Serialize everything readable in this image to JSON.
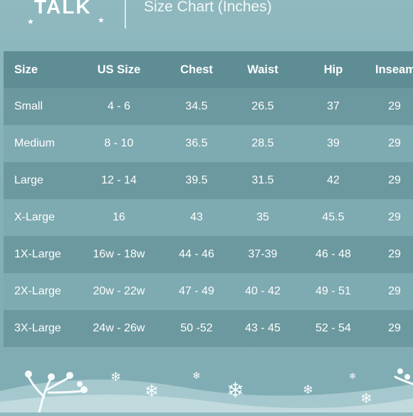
{
  "header": {
    "logo_text": "TALK",
    "subtitle": "Size Chart (Inches)"
  },
  "table": {
    "columns": [
      "Size",
      "US Size",
      "Chest",
      "Waist",
      "Hip",
      "Inseam"
    ],
    "rows": [
      [
        "Small",
        "4 - 6",
        "34.5",
        "26.5",
        "37",
        "29"
      ],
      [
        "Medium",
        "8 - 10",
        "36.5",
        "28.5",
        "39",
        "29"
      ],
      [
        "Large",
        "12 - 14",
        "39.5",
        "31.5",
        "42",
        "29"
      ],
      [
        "X-Large",
        "16",
        "43",
        "35",
        "45.5",
        "29"
      ],
      [
        "1X-Large",
        "16w - 18w",
        "44 - 46",
        "37-39",
        "46 - 48",
        "29"
      ],
      [
        "2X-Large",
        "20w - 22w",
        "47 - 49",
        "40 - 42",
        "49 - 51",
        "29"
      ],
      [
        "3X-Large",
        "24w - 26w",
        "50 -52",
        "43 - 45",
        "52 - 54",
        "29"
      ]
    ]
  },
  "colors": {
    "background": "#86b1b8",
    "header_row": "#5e8d95",
    "row_dark": "#6c999f",
    "row_light": "#7eaab1",
    "text": "#ffffff"
  }
}
